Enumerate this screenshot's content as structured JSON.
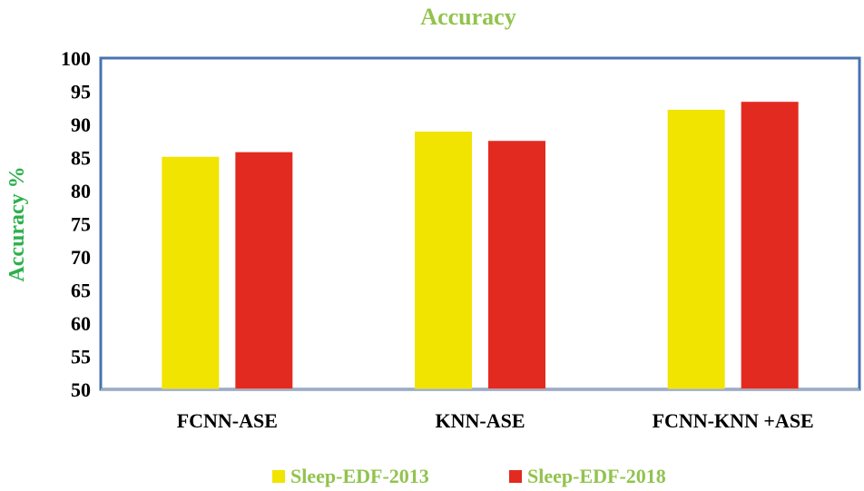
{
  "chart_data": {
    "type": "bar",
    "title": "Accuracy",
    "xlabel": "",
    "ylabel": "Accuracy %",
    "ylim": [
      50,
      100
    ],
    "yticks": [
      50,
      55,
      60,
      65,
      70,
      75,
      80,
      85,
      90,
      95,
      100
    ],
    "categories": [
      "FCNN-ASE",
      "KNN-ASE",
      "FCNN-KNN +ASE"
    ],
    "series": [
      {
        "name": "Sleep-EDF-2013",
        "values": [
          85.1,
          88.9,
          92.2
        ],
        "color": "#f0e400"
      },
      {
        "name": "Sleep-EDF-2018",
        "values": [
          85.8,
          87.5,
          93.4
        ],
        "color": "#e32a20"
      }
    ],
    "legend_position": "bottom",
    "grid": false,
    "frame_color": "#4a72b0"
  }
}
